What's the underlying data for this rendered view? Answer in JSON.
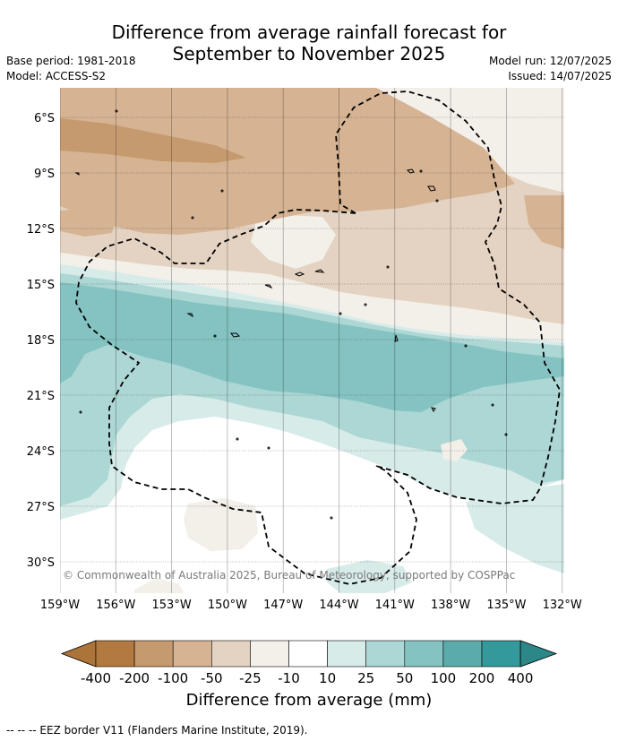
{
  "header": {
    "title_line1": "Difference from average rainfall forecast for",
    "title_line2": "September to November 2025",
    "base_period": "Base period: 1981-2018",
    "model": "Model: ACCESS-S2",
    "model_run": "Model run: 12/07/2025",
    "issued": "Issued: 14/07/2025"
  },
  "map": {
    "lat_labels": [
      "6°S",
      "9°S",
      "12°S",
      "15°S",
      "18°S",
      "21°S",
      "24°S",
      "27°S",
      "30°S"
    ],
    "lon_labels": [
      "159°W",
      "156°W",
      "153°W",
      "150°W",
      "147°W",
      "144°W",
      "141°W",
      "138°W",
      "135°W",
      "132°W"
    ],
    "copyright": "© Commonwealth of Australia 2025, Bureau of Meteorology, supported by COSPPac"
  },
  "colorbar": {
    "tick_labels": [
      "-400",
      "-200",
      "-100",
      "-50",
      "-25",
      "-10",
      "10",
      "25",
      "50",
      "100",
      "200",
      "400"
    ],
    "colors": [
      "#ad743a",
      "#b27a40",
      "#c59a6f",
      "#d5b393",
      "#e4d3c2",
      "#f3efe9",
      "#ffffff",
      "#d7ebe9",
      "#acd7d4",
      "#84c3c1",
      "#5babaa",
      "#33999a",
      "#2b8788"
    ],
    "label": "Difference from average (mm)"
  },
  "footer": {
    "legend": "--  --  -- EEZ border V11 (Flanders Marine Institute, 2019)."
  }
}
